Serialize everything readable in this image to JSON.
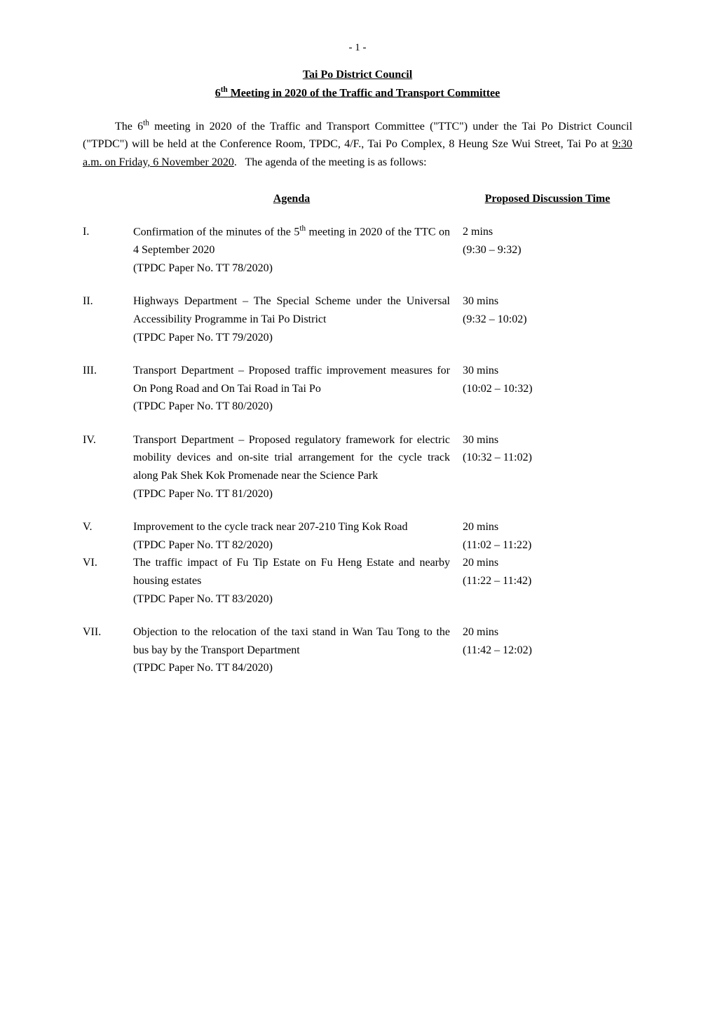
{
  "page_number": "- 1 -",
  "title_line1": "Tai Po District Council",
  "title_line2": "6th Meeting in 2020 of the Traffic and Transport Committee",
  "intro_html": "The 6<sup>th</sup> meeting in 2020 of the Traffic and Transport Committee (\"TTC\") under the Tai Po District Council (\"TPDC\") will be held at the Conference Room, TPDC, 4/F., Tai Po Complex, 8 Heung Sze Wui Street, Tai Po at <u>9:30 a.m. on Friday, 6 November 2020</u>.&nbsp;&nbsp; The agenda of the meeting is as follows:",
  "agenda_heading": "Agenda",
  "time_heading": "Proposed Discussion Time",
  "colors": {
    "text": "#000000",
    "background": "#ffffff"
  },
  "typography": {
    "font_family": "Times New Roman",
    "body_fontsize_pt": 12
  },
  "items": [
    {
      "num": "I.",
      "title": "Confirmation of the minutes of the 5th meeting in 2020 of the TTC on 4 September 2020",
      "ref": "(TPDC Paper No. TT 78/2020)",
      "duration": "2 mins",
      "range": "(9:30 – 9:32)"
    },
    {
      "num": "II.",
      "title": "Highways Department – The Special Scheme under the Universal Accessibility Programme in Tai Po District",
      "ref": "(TPDC Paper No. TT 79/2020)",
      "duration": "30 mins",
      "range": "(9:32 – 10:02)"
    },
    {
      "num": "III.",
      "title": "Transport Department – Proposed traffic improvement measures for On Pong Road and On Tai Road in Tai Po",
      "ref": "(TPDC Paper No. TT 80/2020)",
      "duration": "30 mins",
      "range": "(10:02 – 10:32)"
    },
    {
      "num": "IV.",
      "title": "Transport Department – Proposed regulatory framework for electric mobility devices and on-site trial arrangement for the cycle track along Pak Shek Kok Promenade near the Science Park",
      "ref": "(TPDC Paper No. TT 81/2020)",
      "duration": "30 mins",
      "range": "(10:32 – 11:02)"
    },
    {
      "num": "V.",
      "title": "Improvement to the cycle track near 207-210 Ting Kok Road",
      "ref": "(TPDC Paper No. TT 82/2020)",
      "duration": "20 mins",
      "range": "(11:02 – 11:22)"
    },
    {
      "num": "VI.",
      "title": "The traffic impact of Fu Tip Estate on Fu Heng Estate and nearby housing estates",
      "ref": "(TPDC Paper No. TT 83/2020)",
      "duration": "20 mins",
      "range": "(11:22 – 11:42)"
    },
    {
      "num": "VII.",
      "title": "Objection to the relocation of the taxi stand in Wan Tau Tong to the bus bay by the Transport Department",
      "ref": "(TPDC Paper No. TT 84/2020)",
      "duration": "20 mins",
      "range": "(11:42 – 12:02)"
    }
  ]
}
